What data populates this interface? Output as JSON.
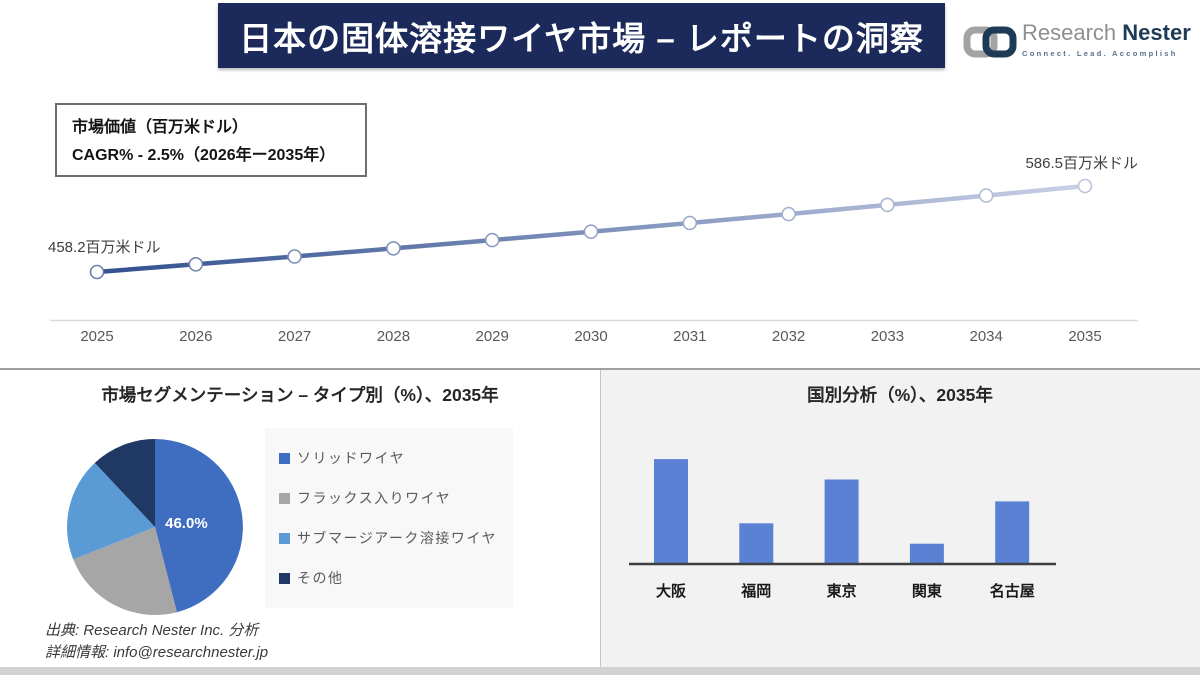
{
  "header": {
    "title": "日本の固体溶接ワイヤ市場 – レポートの洞察",
    "logo": {
      "brand_primary": "Research",
      "brand_secondary": "Nester",
      "tagline": "Connect. Lead. Accomplish"
    }
  },
  "info_box": {
    "line1": "市場価値（百万米ドル）",
    "line2": "CAGR% - 2.5%（2026年ー2035年）"
  },
  "chart_data": [
    {
      "type": "line",
      "title": "市場価値（百万米ドル）",
      "x": [
        2025,
        2026,
        2027,
        2028,
        2029,
        2030,
        2031,
        2032,
        2033,
        2034,
        2035
      ],
      "values": [
        458.2,
        469.7,
        481.4,
        493.4,
        505.8,
        518.4,
        531.4,
        544.6,
        558.3,
        572.2,
        586.5
      ],
      "start_label": "458.2百万米ドル",
      "end_label": "586.5百万米ドル",
      "cagr_note": "CAGR% - 2.5%（2026年ー2035年）",
      "ylim": [
        440,
        610
      ],
      "grid": false,
      "line_gradient": [
        "#31508e",
        "#c9d0e6"
      ],
      "axis_color": "#d9d9d9",
      "tick_color": "#595959"
    },
    {
      "type": "pie",
      "title": "市場セグメンテーション – タイプ別（%）、2035年",
      "labels": [
        "ソリッドワイヤ",
        "フラックス入りワイヤ",
        "サブマージアーク溶接ワイヤ",
        "その他"
      ],
      "values": [
        46.0,
        23.0,
        19.0,
        12.0
      ],
      "colors": [
        "#3f6ec0",
        "#a6a6a6",
        "#5b9bd5",
        "#1f3864"
      ],
      "data_label": "46.0%",
      "legend_position": "right"
    },
    {
      "type": "bar",
      "title": "国別分析（%）、2035年",
      "categories": [
        "大阪",
        "福岡",
        "東京",
        "関東",
        "名古屋"
      ],
      "values": [
        33.5,
        13,
        27,
        6.5,
        20
      ],
      "bar_color": "#5b81d5",
      "axis_color": "#3f3f3f",
      "label_color": "#1a1a1a"
    }
  ],
  "footer": {
    "source": "出典: Research Nester Inc. 分析",
    "contact": "詳細情報: info@researchnester.jp"
  }
}
